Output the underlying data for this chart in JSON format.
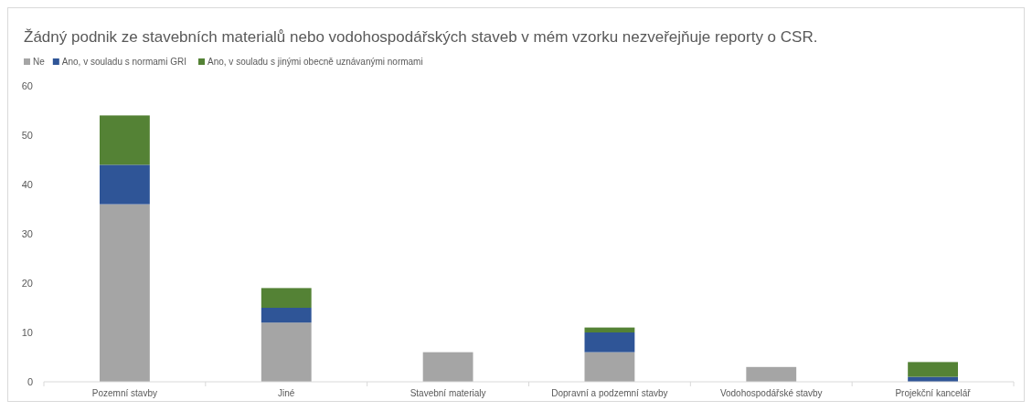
{
  "chart_data": {
    "type": "bar",
    "stacked": true,
    "title": "Žádný podnik ze stavebních materialů nebo vodohospodářských staveb v mém vzorku nezveřejňuje reporty o CSR.",
    "categories": [
      "Pozemní stavby",
      "Jiné",
      "Stavební materialy",
      "Dopravní a podzemní stavby",
      "Vodohospodářské stavby",
      "Projekční kancelář"
    ],
    "series": [
      {
        "name": "Ne",
        "color": "#a5a5a5",
        "values": [
          36,
          12,
          6,
          6,
          3,
          0
        ]
      },
      {
        "name": "Ano, v souladu s normami GRI",
        "color": "#2f5597",
        "values": [
          8,
          3,
          0,
          4,
          0,
          1
        ]
      },
      {
        "name": "Ano, v souladu s jinými obecně uznávanými normami",
        "color": "#548235",
        "values": [
          10,
          4,
          0,
          1,
          0,
          3
        ]
      }
    ],
    "ylim": [
      0,
      60
    ],
    "yticks": [
      0,
      10,
      20,
      30,
      40,
      50,
      60
    ],
    "grid": false,
    "legend": "top left"
  }
}
